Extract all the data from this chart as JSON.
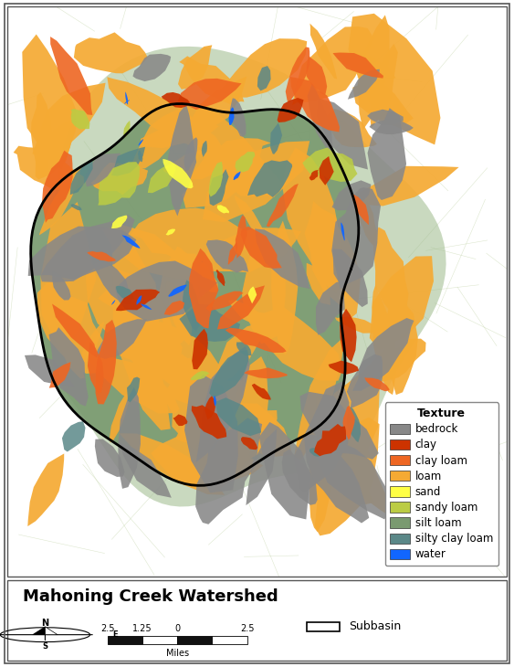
{
  "title": "Mahoning Creek Watershed",
  "legend_title": "Texture",
  "legend_items": [
    {
      "label": "bedrock",
      "color": "#888888"
    },
    {
      "label": "clay",
      "color": "#cc3300"
    },
    {
      "label": "clay loam",
      "color": "#ee6622"
    },
    {
      "label": "loam",
      "color": "#f5aa33"
    },
    {
      "label": "sand",
      "color": "#ffff44"
    },
    {
      "label": "sandy loam",
      "color": "#bbcc44"
    },
    {
      "label": "silt loam",
      "color": "#7a9a70"
    },
    {
      "label": "silty clay loam",
      "color": "#5b8888"
    },
    {
      "label": "water",
      "color": "#1166ff"
    }
  ],
  "subbasin_label": "Subbasin",
  "scale_label": "Miles",
  "scale_ticks": [
    "2.5",
    "1.25",
    "0",
    "2.5"
  ],
  "map_bg_color": "#f2efe6",
  "topo_line_color": "#c8d8b0",
  "buffer_color": "#9dba8c",
  "buffer_alpha": 0.55,
  "watershed_bg_color": "#7a9a70",
  "border_color": "#555555",
  "fig_width": 5.63,
  "fig_height": 7.3,
  "dpi": 100,
  "title_fontsize": 13,
  "legend_fontsize": 8.5,
  "legend_title_fontsize": 9
}
